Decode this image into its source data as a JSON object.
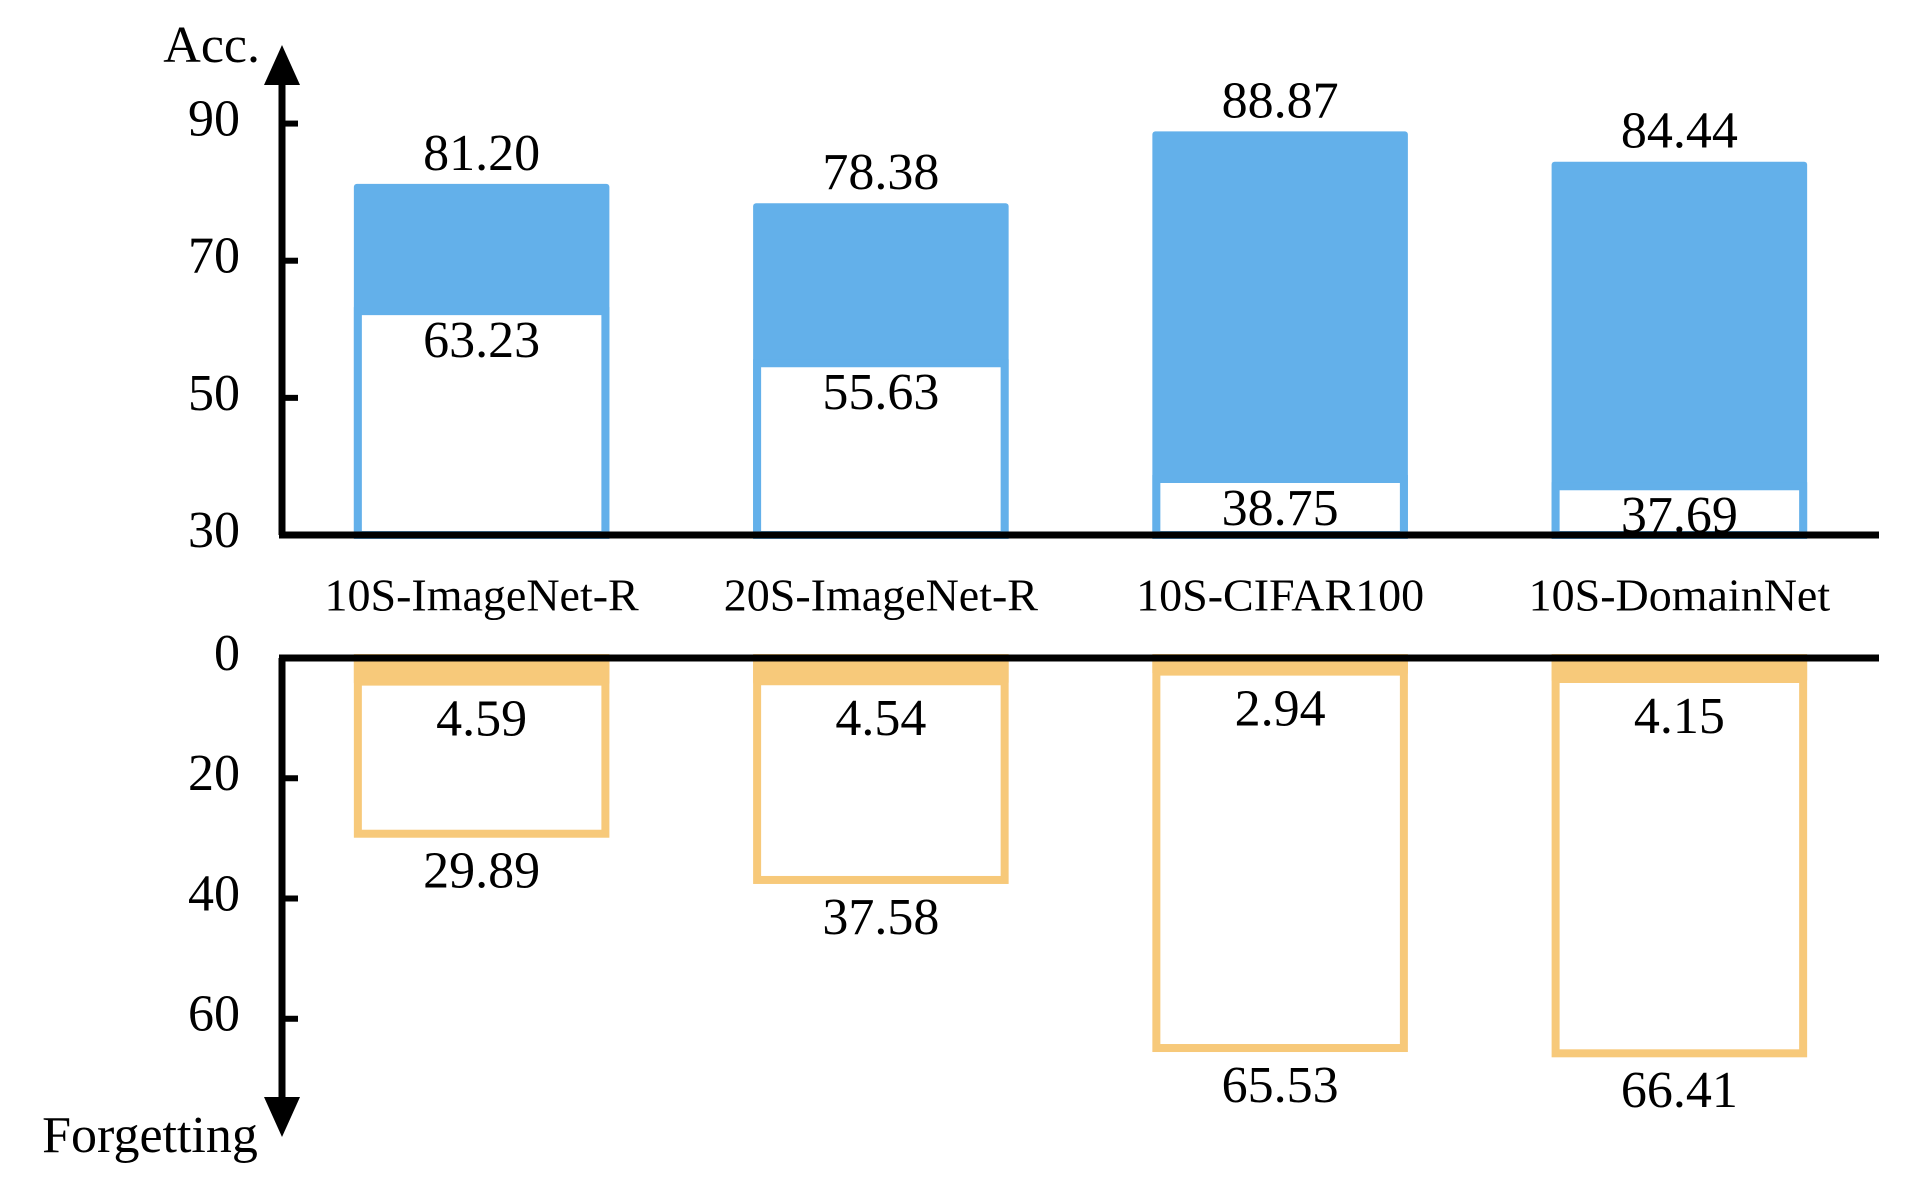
{
  "chart_data": [
    {
      "type": "bar",
      "y_label": "Acc.",
      "categories": [
        "10S-ImageNet-R",
        "20S-ImageNet-R",
        "10S-CIFAR100",
        "10S-DomainNet"
      ],
      "series": [
        {
          "color": "#63b0ea",
          "filled": true,
          "values": [
            81.2,
            78.38,
            88.87,
            84.44
          ],
          "value_labels": [
            "81.20",
            "78.38",
            "88.87",
            "84.44"
          ]
        },
        {
          "color": "#63b0ea",
          "filled": false,
          "values": [
            63.23,
            55.63,
            38.75,
            37.69
          ]
        }
      ],
      "ylim": [
        30,
        100
      ],
      "yticks": [
        30,
        50,
        70,
        90
      ],
      "inverted": false
    },
    {
      "type": "bar",
      "y_label": "Forgetting",
      "series": [
        {
          "color": "#f7c97a",
          "filled": true,
          "values": [
            4.59,
            4.54,
            2.94,
            4.15
          ]
        },
        {
          "color": "#f7c97a",
          "filled": false,
          "values": [
            29.89,
            37.58,
            65.53,
            66.41
          ]
        }
      ],
      "ylim": [
        0,
        78
      ],
      "yticks": [
        0,
        20,
        40,
        60
      ],
      "inverted": true
    }
  ]
}
